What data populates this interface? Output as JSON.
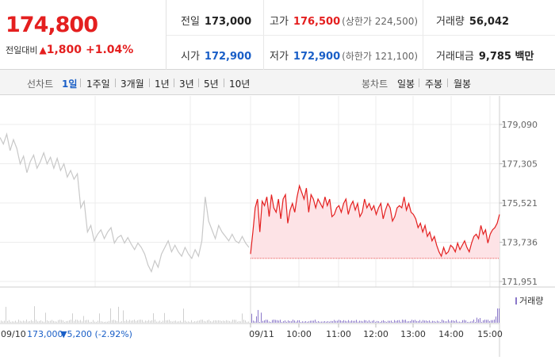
{
  "quote": {
    "price": "174,800",
    "change_label": "전일대비",
    "change_arrow": "▲",
    "change_amount": "1,800",
    "change_percent": "+1.04%"
  },
  "stats": {
    "prev_close_label": "전일",
    "prev_close": "173,000",
    "high_label": "고가",
    "high": "176,500",
    "upper_limit": "(상한가 224,500)",
    "volume_label": "거래량",
    "volume": "56,042",
    "open_label": "시가",
    "open": "172,900",
    "low_label": "저가",
    "low": "172,900",
    "lower_limit": "(하한가 121,100)",
    "amount_label": "거래대금",
    "amount": "9,785 백만"
  },
  "tabs": {
    "line_label": "선차트",
    "line": [
      "1일",
      "1주일",
      "3개월",
      "1년",
      "3년",
      "5년",
      "10년"
    ],
    "line_active": 0,
    "candle_label": "봉차트",
    "candle": [
      "일봉",
      "주봉",
      "월봉"
    ]
  },
  "colors": {
    "up": "#e41f1f",
    "down": "#1a5fc7",
    "prev_day": "#c8c8c8",
    "fill": "#fde3e6",
    "volume": "#8a77c9"
  },
  "chart_data": {
    "type": "line",
    "price_ticks": [
      "179,090",
      "177,305",
      "175,521",
      "173,736",
      "171,951"
    ],
    "price_tick_values": [
      179090,
      177305,
      175521,
      173736,
      171951
    ],
    "ylim": [
      171951,
      179090
    ],
    "prev_close_value": 173000,
    "x_labels": [
      "09/11",
      "10:00",
      "11:00",
      "12:00",
      "13:00",
      "14:00",
      "15:00"
    ],
    "prev_day_label": "09/10",
    "prev_day_info": "173,000",
    "prev_day_change": "▼5,200 (-2.92%)",
    "volume_legend": "거래량",
    "series": [
      {
        "name": "09/10",
        "values": [
          178500,
          178200,
          178650,
          177900,
          178400,
          178000,
          177300,
          177650,
          176900,
          177400,
          177700,
          177100,
          177400,
          177800,
          177300,
          177600,
          177100,
          177550,
          177000,
          177300,
          176700,
          177000,
          176600,
          176850,
          175300,
          175600,
          174200,
          174500,
          173800,
          174100,
          174300,
          173900,
          174200,
          174400,
          173700,
          173950,
          174050,
          173700,
          173950,
          173650,
          173400,
          173700,
          173500,
          173200,
          172700,
          172400,
          172900,
          172600,
          173200,
          173500,
          173800,
          173300,
          173600,
          173300,
          173100,
          173500,
          173200,
          173000,
          173400,
          173100,
          173800,
          175800,
          174700,
          174300,
          173900,
          174500,
          174200,
          174000,
          173800,
          174100,
          173800,
          173700,
          174000,
          173700,
          173500
        ]
      },
      {
        "name": "09/11",
        "values": [
          173200,
          174200,
          175300,
          175700,
          174200,
          175600,
          175400,
          175800,
          174900,
          175900,
          175300,
          175100,
          175700,
          174800,
          175700,
          175900,
          174600,
          175200,
          175500,
          175100,
          175800,
          176300,
          176000,
          175700,
          176200,
          175100,
          175900,
          175700,
          175300,
          175700,
          175500,
          175300,
          175800,
          175400,
          175700,
          174900,
          175000,
          175300,
          175400,
          175100,
          175500,
          175700,
          175000,
          175400,
          175600,
          175200,
          175500,
          174900,
          175100,
          175700,
          175300,
          175500,
          175200,
          175400,
          175000,
          175300,
          175500,
          174800,
          175200,
          175500,
          175300,
          174700,
          174900,
          175300,
          175400,
          175300,
          175800,
          175200,
          175500,
          175100,
          175000,
          174800,
          174400,
          174600,
          174200,
          174500,
          174000,
          174200,
          173800,
          174000,
          173600,
          173300,
          173100,
          173500,
          173200,
          173300,
          173600,
          173500,
          173300,
          173700,
          173400,
          173600,
          173800,
          173500,
          173300,
          173700,
          174000,
          174100,
          173900,
          174500,
          174100,
          174300,
          173700,
          174100,
          174300,
          174400,
          174600,
          175000
        ]
      }
    ]
  }
}
